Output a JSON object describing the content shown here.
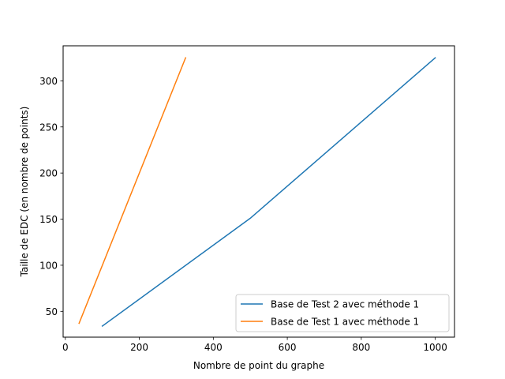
{
  "chart_data": {
    "type": "line",
    "title": "",
    "xlabel": "Nombre de point du graphe",
    "ylabel": "Taille de EDC (en nombre de points)",
    "xlim": [
      -6,
      1052
    ],
    "ylim": [
      22,
      338
    ],
    "xticks": [
      0,
      200,
      400,
      600,
      800,
      1000
    ],
    "yticks": [
      50,
      100,
      150,
      200,
      250,
      300
    ],
    "grid": false,
    "legend_position": "lower right",
    "series": [
      {
        "name": "Base de Test 2 avec méthode 1",
        "color": "#1f77b4",
        "x": [
          100,
          500,
          1000
        ],
        "y": [
          34,
          151,
          325
        ]
      },
      {
        "name": "Base de Test 1 avec méthode 1",
        "color": "#ff7f0e",
        "x": [
          37,
          325
        ],
        "y": [
          37,
          325
        ]
      }
    ]
  }
}
